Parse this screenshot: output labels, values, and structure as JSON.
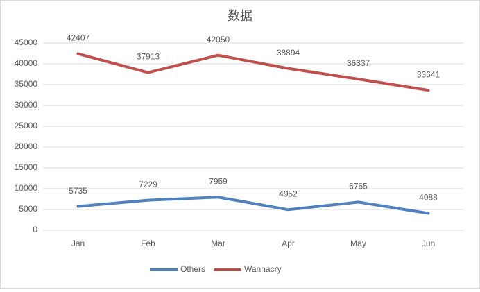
{
  "chart_data": {
    "type": "line",
    "title": "数据",
    "categories": [
      "Jan",
      "Feb",
      "Mar",
      "Apr",
      "May",
      "Jun"
    ],
    "series": [
      {
        "name": "Others",
        "color": "#4f81bd",
        "values": [
          5735,
          7229,
          7959,
          4952,
          6765,
          4088
        ]
      },
      {
        "name": "Wannacry",
        "color": "#c0504d",
        "values": [
          42407,
          37913,
          42050,
          38894,
          36337,
          33641
        ]
      }
    ],
    "ylim": [
      0,
      45000
    ],
    "yticks": [
      0,
      5000,
      10000,
      15000,
      20000,
      25000,
      30000,
      35000,
      40000,
      45000
    ],
    "grid": true,
    "legend": "bottom"
  }
}
